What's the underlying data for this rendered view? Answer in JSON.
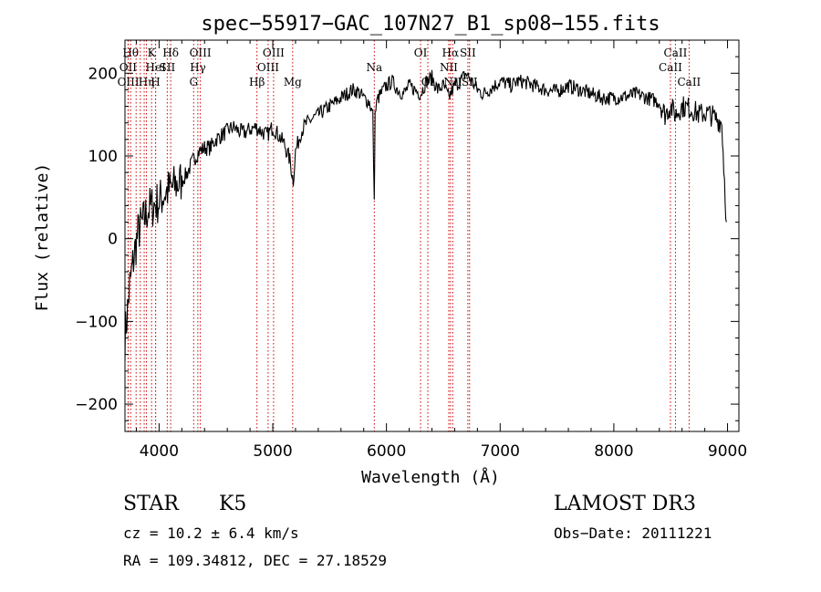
{
  "chart_data": {
    "type": "line",
    "title": "spec−55917−GAC_107N27_B1_sp08−155.fits",
    "xlabel": "Wavelength (Å)",
    "ylabel": "Flux (relative)",
    "xlim": [
      3700,
      9100
    ],
    "ylim": [
      -233,
      240
    ],
    "xticks": [
      4000,
      5000,
      6000,
      7000,
      8000,
      9000
    ],
    "xtick_labels": [
      "4000",
      "5000",
      "6000",
      "7000",
      "8000",
      "9000"
    ],
    "yticks": [
      -200,
      -100,
      0,
      100,
      200
    ],
    "ytick_labels": [
      "−200",
      "−100",
      "0",
      "100",
      "200"
    ],
    "series": [
      {
        "name": "spectrum",
        "x": [
          3700,
          3740,
          3780,
          3820,
          3860,
          3900,
          3950,
          4000,
          4050,
          4100,
          4150,
          4200,
          4250,
          4300,
          4350,
          4400,
          4450,
          4500,
          4550,
          4600,
          4650,
          4700,
          4750,
          4800,
          4850,
          4900,
          4950,
          5000,
          5050,
          5100,
          5150,
          5180,
          5200,
          5250,
          5300,
          5350,
          5400,
          5450,
          5500,
          5550,
          5600,
          5650,
          5700,
          5750,
          5800,
          5850,
          5880,
          5893,
          5900,
          5920,
          5950,
          6000,
          6050,
          6100,
          6150,
          6200,
          6250,
          6300,
          6350,
          6400,
          6450,
          6500,
          6550,
          6563,
          6600,
          6650,
          6700,
          6750,
          6800,
          6850,
          6900,
          6950,
          7000,
          7050,
          7100,
          7150,
          7200,
          7300,
          7400,
          7500,
          7600,
          7700,
          7800,
          7900,
          8000,
          8100,
          8200,
          8300,
          8400,
          8450,
          8498,
          8542,
          8600,
          8662,
          8700,
          8750,
          8800,
          8850,
          8900,
          8950,
          8990
        ],
        "y": [
          -120,
          -60,
          -20,
          10,
          20,
          35,
          40,
          45,
          55,
          60,
          65,
          70,
          80,
          95,
          105,
          110,
          110,
          120,
          125,
          130,
          135,
          130,
          128,
          132,
          135,
          130,
          125,
          135,
          125,
          115,
          95,
          70,
          105,
          130,
          140,
          145,
          150,
          155,
          160,
          165,
          170,
          175,
          180,
          178,
          170,
          165,
          150,
          40,
          150,
          168,
          175,
          185,
          190,
          180,
          175,
          185,
          180,
          175,
          190,
          195,
          180,
          185,
          170,
          175,
          185,
          190,
          200,
          190,
          180,
          175,
          180,
          185,
          190,
          188,
          185,
          190,
          190,
          185,
          180,
          178,
          185,
          180,
          175,
          170,
          170,
          172,
          175,
          170,
          165,
          150,
          160,
          150,
          160,
          158,
          155,
          150,
          152,
          150,
          145,
          140,
          20
        ]
      }
    ],
    "line_markers": [
      {
        "wave": 3750,
        "label": "Hθ",
        "row": 0
      },
      {
        "wave": 3727,
        "label": "OII",
        "row": 1
      },
      {
        "wave": 3729,
        "label": "OIII",
        "row": 2
      },
      {
        "wave": 3798,
        "label": "",
        "row": -1
      },
      {
        "wave": 3835,
        "label": "",
        "row": -1
      },
      {
        "wave": 3869,
        "label": "",
        "row": -1
      },
      {
        "wave": 3889,
        "label": "Hη",
        "row": 2
      },
      {
        "wave": 3934,
        "label": "K",
        "row": 0
      },
      {
        "wave": 3969,
        "label": "H",
        "row": 2
      },
      {
        "wave": 3970,
        "label": "HeI",
        "row": 1
      },
      {
        "wave": 4072,
        "label": "SII",
        "row": 1
      },
      {
        "wave": 4102,
        "label": "Hδ",
        "row": 0
      },
      {
        "wave": 4304,
        "label": "G",
        "row": 2
      },
      {
        "wave": 4341,
        "label": "Hγ",
        "row": 1
      },
      {
        "wave": 4363,
        "label": "OIII",
        "row": 0
      },
      {
        "wave": 4861,
        "label": "Hβ",
        "row": 2
      },
      {
        "wave": 4959,
        "label": "OIII",
        "row": 1
      },
      {
        "wave": 5007,
        "label": "OIII",
        "row": 0
      },
      {
        "wave": 5175,
        "label": "Mg",
        "row": 2
      },
      {
        "wave": 5893,
        "label": "Na",
        "row": 1
      },
      {
        "wave": 6300,
        "label": "OI",
        "row": 0
      },
      {
        "wave": 6364,
        "label": "OI",
        "row": 2
      },
      {
        "wave": 6548,
        "label": "NII",
        "row": 1
      },
      {
        "wave": 6563,
        "label": "Hα",
        "row": 0
      },
      {
        "wave": 6583,
        "label": "NII",
        "row": 2
      },
      {
        "wave": 6716,
        "label": "SII",
        "row": 0
      },
      {
        "wave": 6731,
        "label": "SII",
        "row": 2
      },
      {
        "wave": 8498,
        "label": "CaII",
        "row": 1
      },
      {
        "wave": 8542,
        "label": "CaII",
        "row": 0
      },
      {
        "wave": 8662,
        "label": "CaII",
        "row": 2
      }
    ],
    "colors": {
      "axes": "#000000",
      "line": "#000000",
      "markers": "#cc0000"
    }
  },
  "info": {
    "object_type": "STAR",
    "subclass": "K5",
    "survey": "LAMOST DR3",
    "redshift_line": "cz = 10.2 ± 6.4 km/s",
    "obs_date_line": "Obs−Date: 20111221",
    "coords_line": "RA = 109.34812, DEC =  27.18529"
  }
}
